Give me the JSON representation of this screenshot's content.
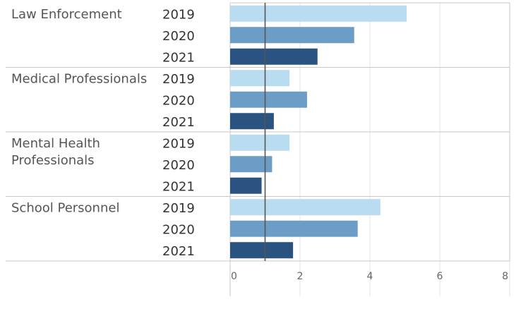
{
  "chart_data": {
    "type": "bar",
    "orientation": "horizontal",
    "groups": [
      {
        "label": "Law Enforcement",
        "bars": [
          {
            "year": "2019",
            "value": 5.05
          },
          {
            "year": "2020",
            "value": 3.55
          },
          {
            "year": "2021",
            "value": 2.5
          }
        ]
      },
      {
        "label": "Medical Professionals",
        "bars": [
          {
            "year": "2019",
            "value": 1.7
          },
          {
            "year": "2020",
            "value": 2.2
          },
          {
            "year": "2021",
            "value": 1.25
          }
        ]
      },
      {
        "label": "Mental Health Professionals",
        "label_lines": [
          "Mental Health",
          "Professionals"
        ],
        "bars": [
          {
            "year": "2019",
            "value": 1.7
          },
          {
            "year": "2020",
            "value": 1.2
          },
          {
            "year": "2021",
            "value": 0.9
          }
        ]
      },
      {
        "label": "School Personnel",
        "bars": [
          {
            "year": "2019",
            "value": 4.3
          },
          {
            "year": "2020",
            "value": 3.65
          },
          {
            "year": "2021",
            "value": 1.8
          }
        ]
      }
    ],
    "xlim": [
      0,
      8
    ],
    "xticks": [
      0,
      2,
      4,
      6,
      8
    ],
    "reference_line": 1,
    "title": "",
    "xlabel": "",
    "ylabel": "",
    "grid": true,
    "colors": {
      "2019": "#b9dcf1",
      "2020": "#6b9dc6",
      "2021": "#2a5382",
      "reference": "#555555",
      "grid": "#e6e6e6",
      "separator": "#c8c8c8"
    }
  }
}
